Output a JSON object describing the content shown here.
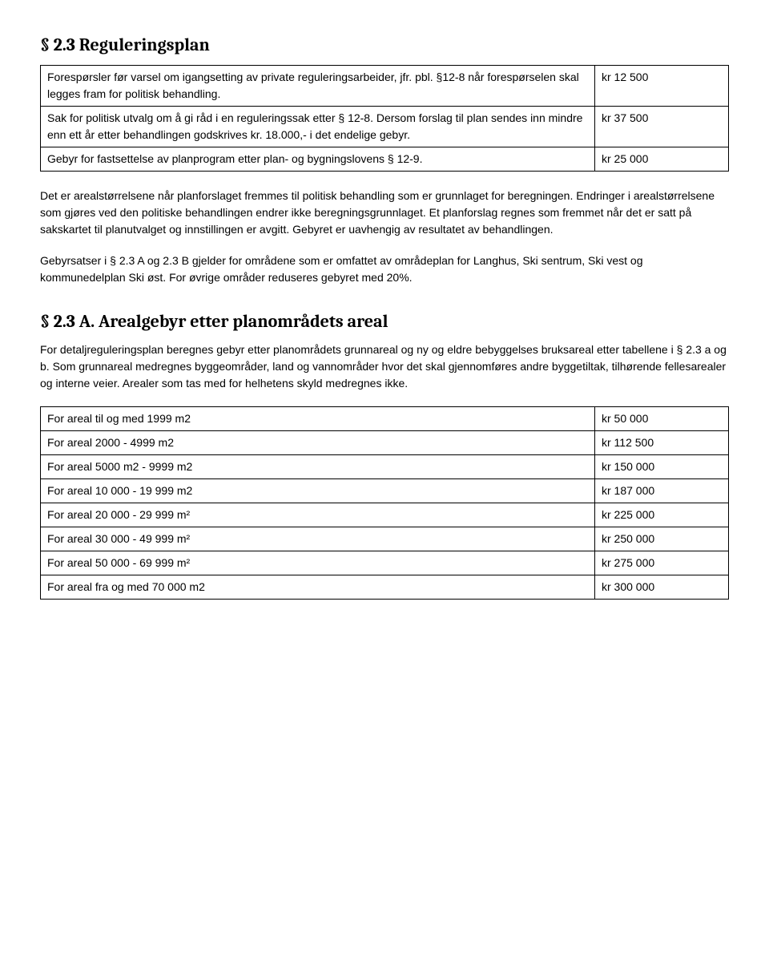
{
  "section23": {
    "heading": "§ 2.3 Reguleringsplan",
    "rows": [
      {
        "desc": "Forespørsler før varsel om igangsetting av private reguleringsarbeider, jfr. pbl. §12-8 når forespørselen skal legges fram for politisk behandling.",
        "value": "kr 12 500"
      },
      {
        "desc": "Sak for politisk utvalg om å gi råd i en reguleringssak etter § 12-8. Dersom forslag til plan sendes inn mindre enn ett år etter behandlingen godskrives kr. 18.000,- i det endelige gebyr.",
        "value": "kr 37 500"
      },
      {
        "desc": "Gebyr for fastsettelse av planprogram etter plan- og bygningslovens § 12-9.",
        "value": "kr 25 000"
      }
    ],
    "para1": "Det er arealstørrelsene når planforslaget fremmes til politisk behandling som er grunnlaget for beregningen. Endringer i arealstørrelsene som gjøres ved den politiske behandlingen endrer ikke beregningsgrunnlaget. Et planforslag regnes som fremmet når det er satt på sakskartet til planutvalget og innstillingen er avgitt. Gebyret er uavhengig av resultatet av behandlingen.",
    "para2": "Gebyrsatser i § 2.3 A og 2.3 B gjelder for områdene som er omfattet av områdeplan for Langhus, Ski sentrum, Ski vest og kommunedelplan Ski øst. For øvrige områder reduseres gebyret med 20%."
  },
  "section23A": {
    "heading": "§ 2.3 A. Arealgebyr etter planområdets areal",
    "intro": "For detaljreguleringsplan beregnes gebyr etter planområdets grunnareal og ny og eldre bebyggelses bruksareal etter tabellene i § 2.3 a og b. Som grunnareal medregnes byggeområder, land og vannområder hvor det skal gjennomføres andre byggetiltak, tilhørende fellesarealer og interne veier. Arealer som tas med for helhetens skyld medregnes ikke.",
    "rows": [
      {
        "desc": "For areal til og med 1999 m2",
        "value": "kr 50 000"
      },
      {
        "desc": "For areal 2000 - 4999 m2",
        "value": "kr 112 500"
      },
      {
        "desc": "For areal 5000 m2 - 9999 m2",
        "value": "kr 150 000"
      },
      {
        "desc": "For areal 10 000 - 19 999 m2",
        "value": "kr 187 000"
      },
      {
        "desc": "For areal 20 000 - 29 999 m²",
        "value": "kr 225 000"
      },
      {
        "desc": "For areal 30 000 - 49 999 m²",
        "value": "kr 250 000"
      },
      {
        "desc": "For areal 50 000 - 69 999 m²",
        "value": "kr 275 000"
      },
      {
        "desc": "For areal fra og med 70 000 m2",
        "value": "kr 300 000"
      }
    ]
  }
}
